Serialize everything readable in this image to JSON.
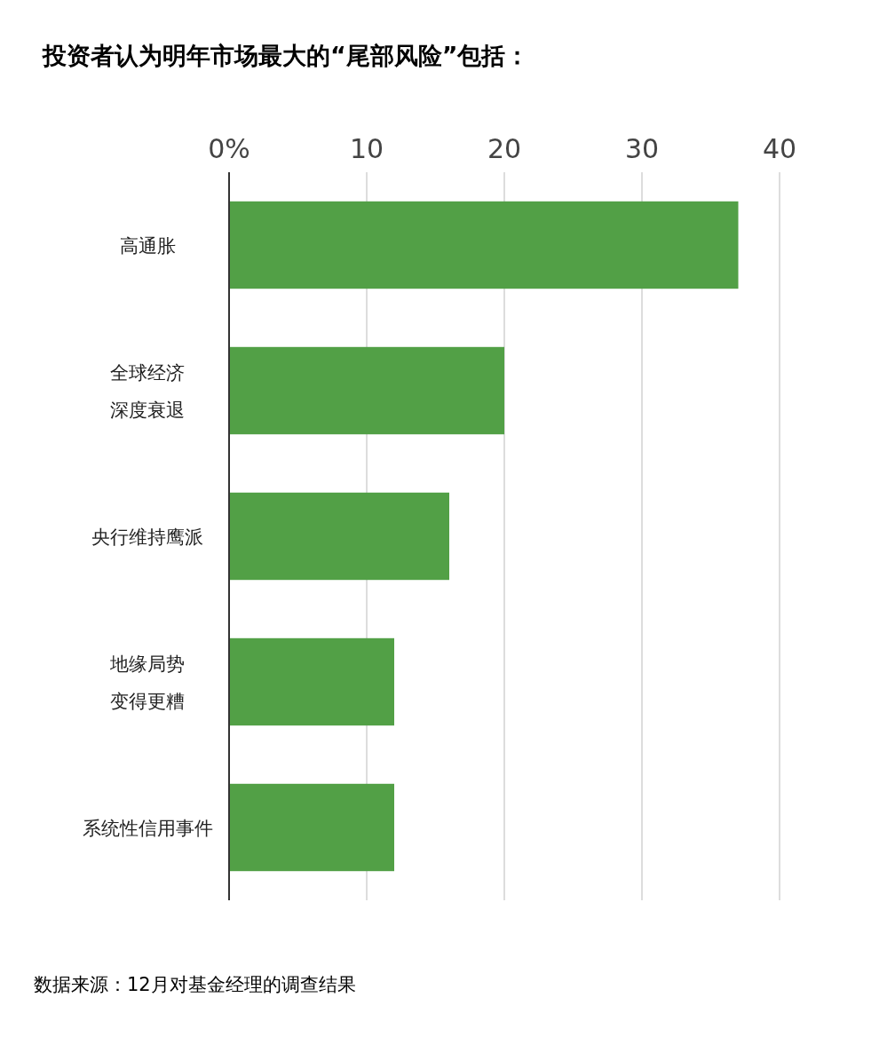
{
  "chart_data": {
    "type": "bar",
    "orientation": "horizontal",
    "title": "投资者认为明年市场最大的“尾部风险”包括：",
    "categories": [
      "高通胀",
      "全球经济深度衰退",
      "央行维持鹰派",
      "地缘局势变得更糟",
      "系统性信用事件"
    ],
    "values": [
      37,
      20,
      16,
      12,
      12
    ],
    "color": "#52a046",
    "xlim": [
      0,
      40
    ],
    "xticks": [
      {
        "value": 0,
        "label": "0%"
      },
      10,
      20,
      30,
      40
    ],
    "grid": "x",
    "annotations": [
      "数据来源：12月对基金经理的调查结果"
    ]
  }
}
